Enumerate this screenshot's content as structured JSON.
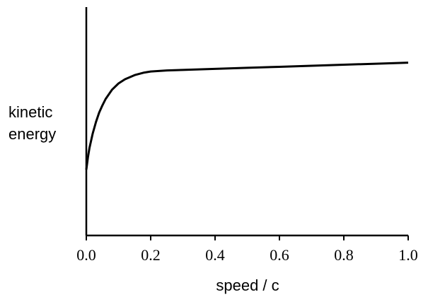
{
  "chart_data": {
    "type": "line",
    "title": "",
    "xlabel": "speed / c",
    "ylabel": [
      "kinetic",
      "energy"
    ],
    "xlim": [
      0.0,
      1.0
    ],
    "y_ticks_shown": false,
    "grid": false,
    "legend": "none",
    "line_color": "#000000",
    "x_ticks": [
      {
        "value": 0.0,
        "label": "0.0"
      },
      {
        "value": 0.2,
        "label": "0.2"
      },
      {
        "value": 0.4,
        "label": "0.4"
      },
      {
        "value": 0.6,
        "label": "0.6"
      },
      {
        "value": 0.8,
        "label": "0.8"
      },
      {
        "value": 1.0,
        "label": "1.0"
      }
    ],
    "series": [
      {
        "x": [
          0.0,
          0.005,
          0.01,
          0.02,
          0.03,
          0.04,
          0.05,
          0.06,
          0.08,
          0.1,
          0.12,
          0.15,
          0.18,
          0.2,
          0.25,
          0.3,
          0.4,
          0.5,
          0.6,
          0.7,
          0.8,
          0.9,
          1.0
        ],
        "y": [
          0.0,
          0.12,
          0.21,
          0.35,
          0.46,
          0.55,
          0.62,
          0.68,
          0.77,
          0.83,
          0.87,
          0.91,
          0.935,
          0.945,
          0.955,
          0.96,
          0.97,
          0.98,
          0.99,
          1.0,
          1.01,
          1.02,
          1.03
        ]
      }
    ]
  }
}
